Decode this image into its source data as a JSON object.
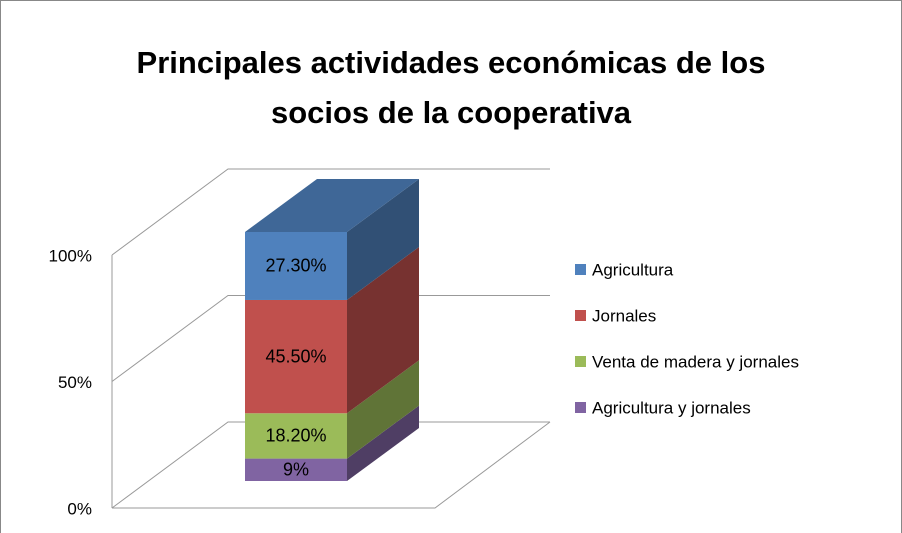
{
  "chart_data": {
    "type": "bar3d_stacked",
    "title": "Principales actividades económicas de los socios de la cooperativa",
    "categories": [
      null
    ],
    "series": [
      {
        "name": "Agricultura",
        "color": "#4f81bd",
        "values": [
          27.3
        ],
        "value_labels": [
          "27.30%"
        ]
      },
      {
        "name": "Jornales",
        "color": "#c0504d",
        "values": [
          45.5
        ],
        "value_labels": [
          "45.50%"
        ]
      },
      {
        "name": "Venta de madera y jornales",
        "color": "#9bbb59",
        "values": [
          18.2
        ],
        "value_labels": [
          "18.20%"
        ]
      },
      {
        "name": "Agricultura y jornales",
        "color": "#8064a2",
        "values": [
          9
        ],
        "value_labels": [
          "9%"
        ]
      }
    ],
    "ylim": [
      0,
      100
    ],
    "yticks": [
      {
        "value": 0,
        "label": "0%"
      },
      {
        "value": 50,
        "label": "50%"
      },
      {
        "value": 100,
        "label": "100%"
      }
    ],
    "grid": true,
    "legend": "right"
  }
}
